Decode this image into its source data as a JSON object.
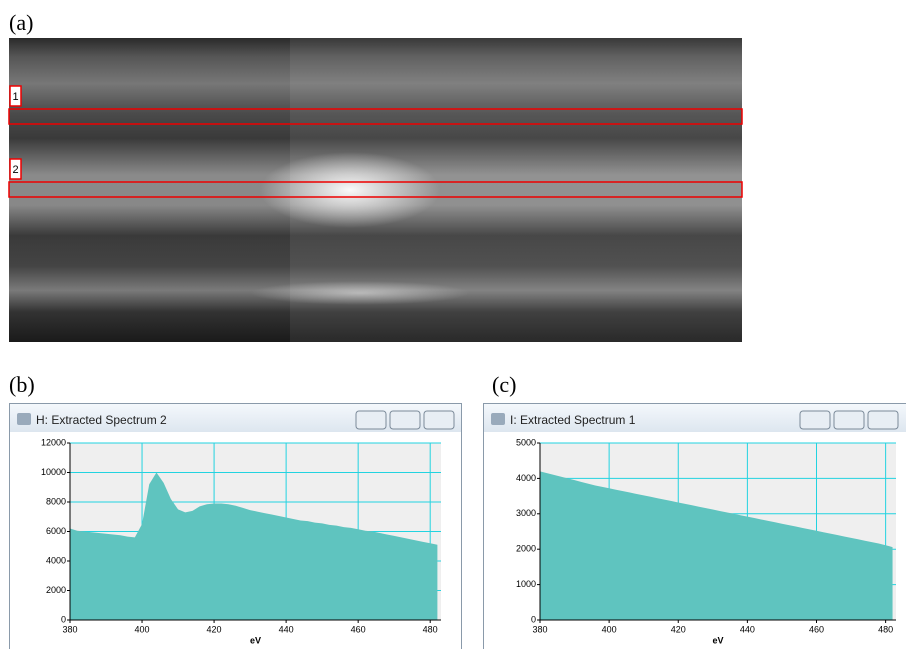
{
  "panels": {
    "a": "(a)",
    "b": "(b)",
    "c": "(c)"
  },
  "regions": [
    "1",
    "2"
  ],
  "windows": [
    "H: Extracted Spectrum 2",
    "I: Extracted Spectrum 1"
  ],
  "chart_data": [
    {
      "type": "area",
      "xlabel": "eV",
      "xlim": [
        380,
        483
      ],
      "ylim": [
        0,
        12000
      ],
      "xticks": [
        380,
        400,
        420,
        440,
        460,
        480
      ],
      "yticks": [
        0,
        2000,
        4000,
        6000,
        8000,
        10000,
        12000
      ],
      "grid": true,
      "color": "#5fc4bf",
      "x": [
        380,
        382,
        384,
        386,
        388,
        390,
        392,
        394,
        396,
        398,
        400,
        402,
        404,
        406,
        408,
        410,
        412,
        414,
        416,
        418,
        420,
        422,
        424,
        426,
        428,
        430,
        432,
        434,
        436,
        438,
        440,
        442,
        444,
        446,
        448,
        450,
        452,
        454,
        456,
        458,
        460,
        462,
        464,
        466,
        468,
        470,
        472,
        474,
        476,
        478,
        480,
        482
      ],
      "values": [
        6200,
        6050,
        6000,
        5950,
        5900,
        5850,
        5800,
        5750,
        5650,
        5600,
        6500,
        9200,
        10000,
        9300,
        8200,
        7500,
        7300,
        7400,
        7700,
        7850,
        7900,
        7900,
        7850,
        7750,
        7600,
        7450,
        7350,
        7250,
        7150,
        7050,
        6950,
        6850,
        6750,
        6700,
        6600,
        6550,
        6450,
        6400,
        6300,
        6250,
        6150,
        6050,
        6000,
        5900,
        5800,
        5700,
        5600,
        5500,
        5400,
        5300,
        5200,
        5100
      ]
    },
    {
      "type": "area",
      "xlabel": "eV",
      "xlim": [
        380,
        483
      ],
      "ylim": [
        0,
        5000
      ],
      "xticks": [
        380,
        400,
        420,
        440,
        460,
        480
      ],
      "yticks": [
        0,
        1000,
        2000,
        3000,
        4000,
        5000
      ],
      "grid": true,
      "color": "#5fc4bf",
      "x": [
        380,
        382,
        384,
        386,
        388,
        390,
        392,
        394,
        396,
        398,
        400,
        402,
        404,
        406,
        408,
        410,
        412,
        414,
        416,
        418,
        420,
        422,
        424,
        426,
        428,
        430,
        432,
        434,
        436,
        438,
        440,
        442,
        444,
        446,
        448,
        450,
        452,
        454,
        456,
        458,
        460,
        462,
        464,
        466,
        468,
        470,
        472,
        474,
        476,
        478,
        480,
        482
      ],
      "values": [
        4200,
        4150,
        4100,
        4050,
        4000,
        3950,
        3900,
        3850,
        3800,
        3760,
        3720,
        3680,
        3640,
        3600,
        3560,
        3520,
        3480,
        3440,
        3400,
        3360,
        3320,
        3280,
        3240,
        3200,
        3160,
        3120,
        3080,
        3040,
        3000,
        2960,
        2920,
        2880,
        2840,
        2800,
        2760,
        2720,
        2680,
        2640,
        2600,
        2560,
        2520,
        2480,
        2440,
        2400,
        2360,
        2320,
        2280,
        2240,
        2200,
        2160,
        2110,
        2060
      ]
    }
  ]
}
